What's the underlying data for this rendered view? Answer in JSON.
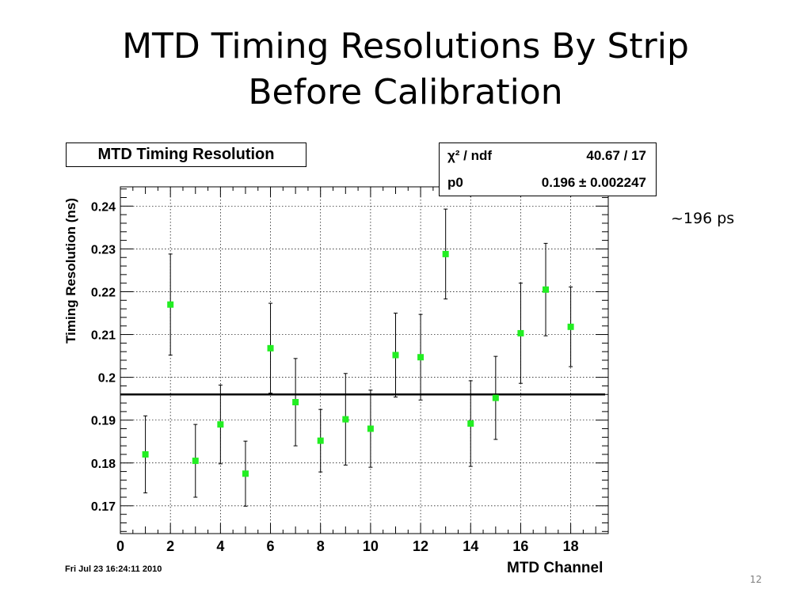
{
  "slide": {
    "title_lines": [
      "MTD Timing Resolutions By Strip",
      "Before Calibration"
    ],
    "annotation": "~196 ps",
    "page_number": "12"
  },
  "chart_data": {
    "type": "scatter",
    "title": "MTD Timing Resolution",
    "xlabel": "MTD Channel",
    "ylabel": "Timing Resolution (ns)",
    "xlim": [
      0,
      19.5
    ],
    "ylim": [
      0.1635,
      0.2445
    ],
    "x_ticks": [
      0,
      2,
      4,
      6,
      8,
      10,
      12,
      14,
      16,
      18
    ],
    "y_ticks": [
      0.17,
      0.18,
      0.19,
      0.2,
      0.21,
      0.22,
      0.23,
      0.24
    ],
    "y_tick_labels": [
      "0.17",
      "0.18",
      "0.19",
      "0.2",
      "0.21",
      "0.22",
      "0.23",
      "0.24"
    ],
    "grid": true,
    "series": [
      {
        "x": [
          1,
          2,
          3,
          4,
          5,
          6,
          7,
          8,
          9,
          10,
          11,
          12,
          13,
          14,
          15,
          16,
          17,
          18
        ],
        "values": [
          0.182,
          0.217,
          0.1805,
          0.189,
          0.1775,
          0.2068,
          0.1942,
          0.1852,
          0.1902,
          0.188,
          0.2052,
          0.2047,
          0.2288,
          0.1892,
          0.1952,
          0.2103,
          0.2205,
          0.2118
        ],
        "errors": [
          0.009,
          0.0118,
          0.0085,
          0.0092,
          0.0076,
          0.0105,
          0.0102,
          0.0073,
          0.0107,
          0.009,
          0.0098,
          0.01,
          0.0105,
          0.01,
          0.0097,
          0.0117,
          0.0108,
          0.0093
        ],
        "marker_color": "#22ee22"
      }
    ],
    "fit": {
      "value": 0.196,
      "color": "#000000"
    },
    "stats": {
      "chi2_label": "χ² / ndf",
      "chi2_value": "40.67 / 17",
      "p0_label": "p0",
      "p0_value": "0.196 ± 0.002247"
    },
    "date_stamp": "Fri Jul 23 16:24:11 2010"
  }
}
